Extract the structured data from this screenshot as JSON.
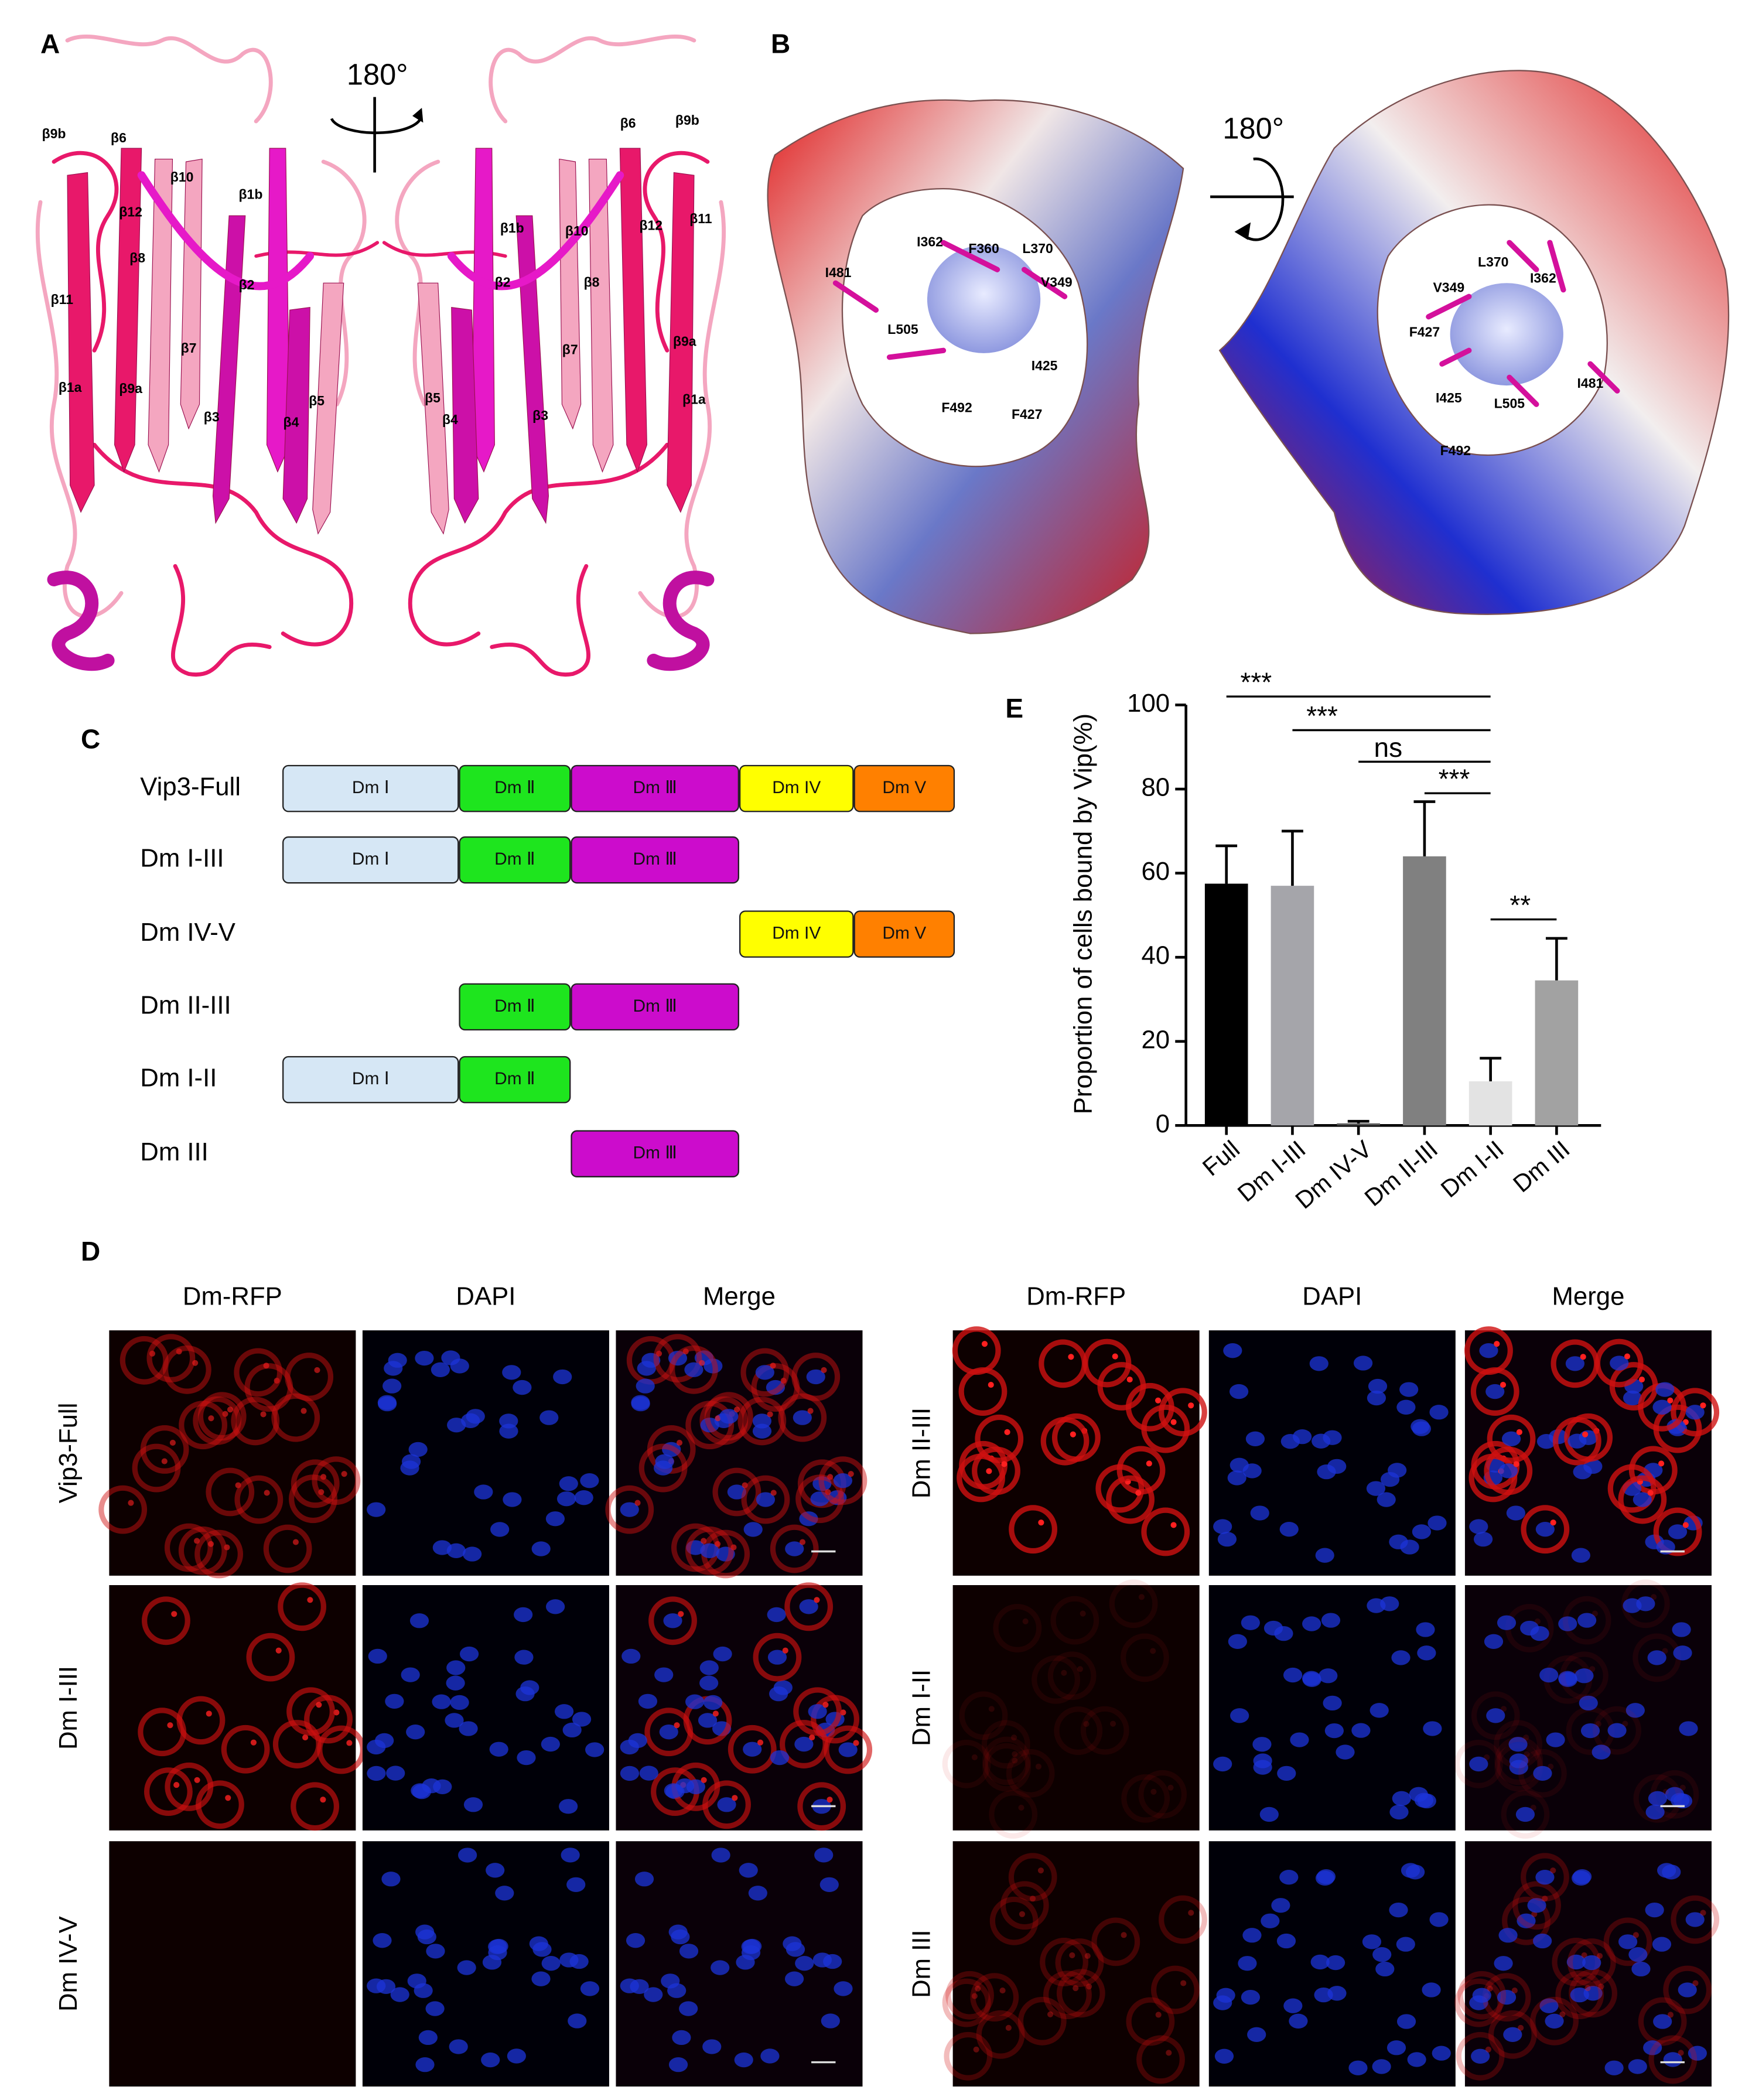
{
  "figure": {
    "A": {
      "label": "A",
      "rotation": "180°",
      "left_labels": [
        "β9b",
        "β6",
        "β10",
        "β12",
        "β1b",
        "β8",
        "β2",
        "β11",
        "β7",
        "β1a",
        "β9a",
        "β3",
        "β5",
        "β4"
      ],
      "right_labels": [
        "β6",
        "β9b",
        "β1b",
        "β10",
        "β12",
        "β11",
        "β8",
        "β2",
        "β9a",
        "β7",
        "β1a",
        "β5",
        "β4",
        "β3"
      ]
    },
    "B": {
      "label": "B",
      "rotation": "180°",
      "left_residues": [
        "I362",
        "F360",
        "L370",
        "I481",
        "V349",
        "L505",
        "I425",
        "F492",
        "F427"
      ],
      "right_residues": [
        "V349",
        "L370",
        "I362",
        "F427",
        "I425",
        "L505",
        "I481",
        "F492"
      ]
    },
    "C": {
      "label": "C",
      "constructs": [
        {
          "name": "Vip3-Full",
          "segments": [
            {
              "label": "Dm Ⅰ",
              "color": "#d6e7f5"
            },
            {
              "label": "Dm Ⅱ",
              "color": "#1ee51e"
            },
            {
              "label": "Dm Ⅲ",
              "color": "#cc0ccc"
            },
            {
              "label": "Dm IV",
              "color": "#ffff00"
            },
            {
              "label": "Dm V",
              "color": "#ff8000"
            }
          ]
        },
        {
          "name": "Dm I-III",
          "segments": [
            {
              "label": "Dm Ⅰ",
              "color": "#d6e7f5"
            },
            {
              "label": "Dm Ⅱ",
              "color": "#1ee51e"
            },
            {
              "label": "Dm Ⅲ",
              "color": "#cc0ccc"
            }
          ]
        },
        {
          "name": "Dm IV-V",
          "segments": [
            {
              "label": "Dm IV",
              "color": "#ffff00"
            },
            {
              "label": "Dm V",
              "color": "#ff8000"
            }
          ]
        },
        {
          "name": "Dm II-III",
          "segments": [
            {
              "label": "Dm Ⅱ",
              "color": "#1ee51e"
            },
            {
              "label": "Dm Ⅲ",
              "color": "#cc0ccc"
            }
          ]
        },
        {
          "name": "Dm I-II",
          "segments": [
            {
              "label": "Dm Ⅰ",
              "color": "#d6e7f5"
            },
            {
              "label": "Dm Ⅱ",
              "color": "#1ee51e"
            }
          ]
        },
        {
          "name": "Dm III",
          "segments": [
            {
              "label": "Dm Ⅲ",
              "color": "#cc0ccc"
            }
          ]
        }
      ]
    },
    "D": {
      "label": "D",
      "columns": [
        "Dm-RFP",
        "DAPI",
        "Merge"
      ],
      "left_rows": [
        "Vip3-Full",
        "Dm I-III",
        "Dm IV-V"
      ],
      "right_rows": [
        "Dm II-III",
        "Dm I-II",
        "Dm III"
      ]
    }
  },
  "chart_data": {
    "type": "bar",
    "label": "E",
    "y_label": "Proportion of cells bound by Vip(%)",
    "categories": [
      "Full",
      "Dm I-III",
      "Dm IV-V",
      "Dm II-III",
      "Dm I-II",
      "Dm III"
    ],
    "values": [
      57.5,
      57,
      0.5,
      64,
      10.5,
      34.5
    ],
    "errors": [
      9,
      13,
      0.5,
      13,
      5.5,
      10
    ],
    "colors": [
      "#000000",
      "#a5a5aa",
      "#555555",
      "#808080",
      "#e3e3e3",
      "#a2a2a2"
    ],
    "ylim": [
      0,
      100
    ],
    "yticks": [
      0,
      20,
      40,
      60,
      80,
      100
    ],
    "comparisons": [
      {
        "from": "Full",
        "to": "Dm I-II",
        "y": 102,
        "label": "***"
      },
      {
        "from": "Dm I-III",
        "to": "Dm I-II",
        "y": 94,
        "label": "***"
      },
      {
        "from": "Dm IV-V",
        "to": "Dm I-II",
        "y": 86.5,
        "label": "ns"
      },
      {
        "from": "Dm II-III",
        "to": "Dm I-II",
        "y": 79,
        "label": "***"
      },
      {
        "from": "Dm I-II",
        "to": "Dm III",
        "y": 49,
        "label": "**"
      }
    ]
  }
}
